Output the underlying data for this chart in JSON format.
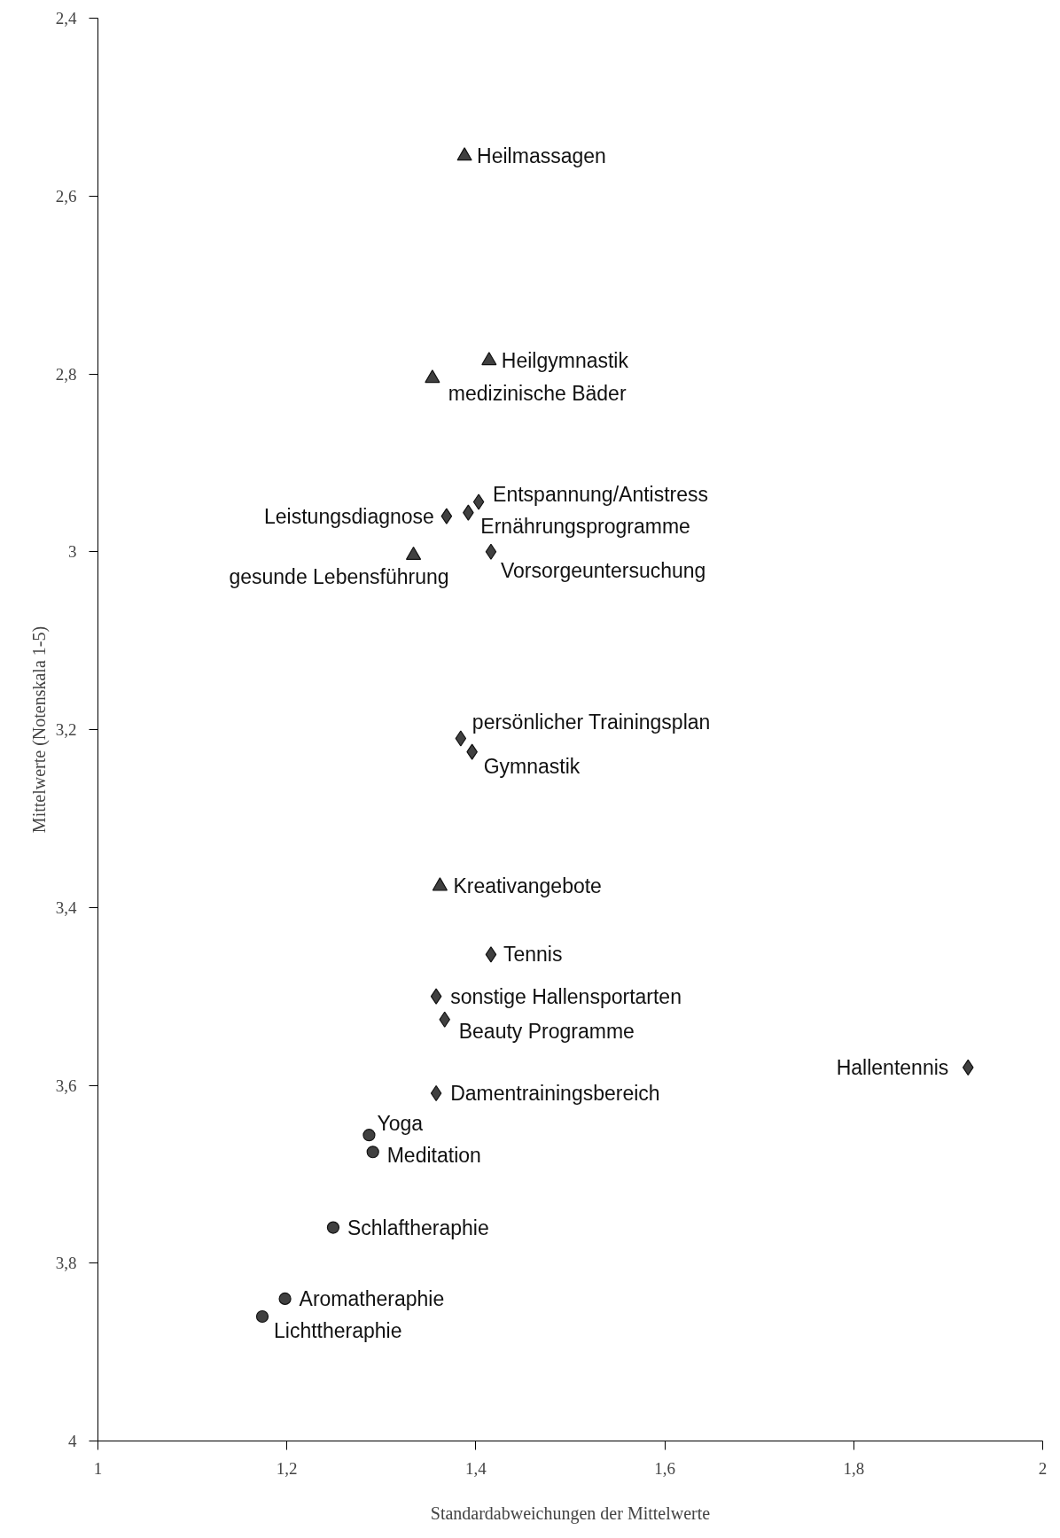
{
  "chart_data": {
    "type": "scatter",
    "xlabel": "Standardabweichungen der Mittelwerte",
    "ylabel": "Mittelwerte (Notenskala 1-5)",
    "xlim": [
      1,
      2
    ],
    "ylim": [
      4,
      2.4
    ],
    "xticks": [
      1,
      {
        "value": 1.2,
        "label": "1,2"
      },
      {
        "value": 1.4,
        "label": "1,4"
      },
      {
        "value": 1.6,
        "label": "1,6"
      },
      {
        "value": 1.8,
        "label": "1,8"
      },
      2
    ],
    "yticks": [
      {
        "value": 2.4,
        "label": "2,4"
      },
      {
        "value": 2.6,
        "label": "2,6"
      },
      {
        "value": 2.8,
        "label": "2,8"
      },
      3,
      {
        "value": 3.2,
        "label": "3,2"
      },
      {
        "value": 3.4,
        "label": "3,4"
      },
      {
        "value": 3.6,
        "label": "3,6"
      },
      {
        "value": 3.8,
        "label": "3,8"
      },
      4
    ],
    "grid": false,
    "series": [
      {
        "color": "#404040",
        "marker": "triangle",
        "x": [
          1.388,
          1.414,
          1.354,
          1.334,
          1.362
        ],
        "values": [
          2.555,
          2.785,
          2.805,
          3.004,
          3.376
        ]
      },
      {
        "color": "#404040",
        "marker": "diamond",
        "x": [
          1.403,
          1.392,
          1.369,
          1.416,
          1.384,
          1.396,
          1.416,
          1.358,
          1.367,
          1.921,
          1.358
        ],
        "values": [
          2.944,
          2.956,
          2.96,
          3.0,
          3.21,
          3.225,
          3.453,
          3.5,
          3.526,
          3.58,
          3.609
        ]
      },
      {
        "color": "#404040",
        "marker": "circle",
        "x": [
          1.287,
          1.291,
          1.249,
          1.198,
          1.174
        ],
        "values": [
          3.656,
          3.675,
          3.76,
          3.84,
          3.86
        ]
      }
    ],
    "annotations": [
      {
        "text": "Heilmassagen",
        "x": 1.388,
        "y": 2.555
      },
      {
        "text": "Heilgymnastik",
        "x": 1.414,
        "y": 2.785
      },
      {
        "text": "medizinische Bäder",
        "x": 1.354,
        "y": 2.805
      },
      {
        "text": "Entspannung/Antistress",
        "x": 1.403,
        "y": 2.944
      },
      {
        "text": "Ernährungsprogramme",
        "x": 1.392,
        "y": 2.956
      },
      {
        "text": "Leistungsdiagnose",
        "x": 1.369,
        "y": 2.96
      },
      {
        "text": "Vorsorgeuntersuchung",
        "x": 1.416,
        "y": 3.0
      },
      {
        "text": "gesunde Lebensführung",
        "x": 1.334,
        "y": 3.004
      },
      {
        "text": "persönlicher Trainingsplan",
        "x": 1.384,
        "y": 3.21
      },
      {
        "text": "Gymnastik",
        "x": 1.396,
        "y": 3.225
      },
      {
        "text": "Kreativangebote",
        "x": 1.362,
        "y": 3.376
      },
      {
        "text": "Tennis",
        "x": 1.416,
        "y": 3.453
      },
      {
        "text": "sonstige Hallensportarten",
        "x": 1.358,
        "y": 3.5
      },
      {
        "text": "Beauty Programme",
        "x": 1.367,
        "y": 3.526
      },
      {
        "text": "Hallentennis",
        "x": 1.921,
        "y": 3.58
      },
      {
        "text": "Damentrainingsbereich",
        "x": 1.358,
        "y": 3.609
      },
      {
        "text": "Yoga",
        "x": 1.287,
        "y": 3.656
      },
      {
        "text": "Meditation",
        "x": 1.291,
        "y": 3.675
      },
      {
        "text": "Schlaftheraphie",
        "x": 1.249,
        "y": 3.76
      },
      {
        "text": "Aromatheraphie",
        "x": 1.198,
        "y": 3.84
      },
      {
        "text": "Lichttheraphie",
        "x": 1.174,
        "y": 3.86
      }
    ]
  }
}
